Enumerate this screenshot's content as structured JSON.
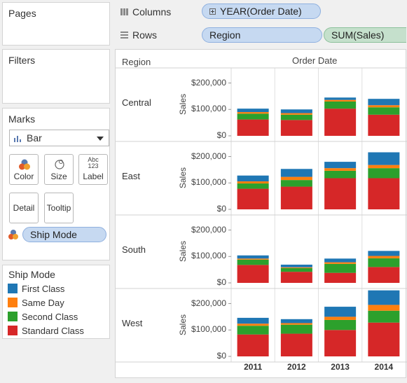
{
  "cards": {
    "pages": "Pages",
    "filters": "Filters",
    "marks": "Marks",
    "legend_title": "Ship Mode"
  },
  "shelves": {
    "columns_label": "Columns",
    "columns_pill": "YEAR(Order Date)",
    "rows_label": "Rows",
    "rows_pills": [
      "Region",
      "SUM(Sales)"
    ]
  },
  "marks": {
    "type": "Bar",
    "buttons": [
      "Color",
      "Size",
      "Label",
      "Detail",
      "Tooltip"
    ],
    "label_icon_text": "Abc\n123",
    "color_field": "Ship Mode"
  },
  "legend": [
    {
      "name": "First Class",
      "color": "#1f77b4"
    },
    {
      "name": "Same Day",
      "color": "#ff7f0e"
    },
    {
      "name": "Second Class",
      "color": "#2ca02c"
    },
    {
      "name": "Standard Class",
      "color": "#d62728"
    }
  ],
  "headers": {
    "region": "Region",
    "order_date": "Order Date",
    "measure": "Sales"
  },
  "chart_data": {
    "type": "bar",
    "stacked": true,
    "categories": [
      "2011",
      "2012",
      "2013",
      "2014"
    ],
    "ylabel": "Sales",
    "yticks": [
      "$0",
      "$100,000",
      "$200,000"
    ],
    "ylim": [
      0,
      220000
    ],
    "facets": [
      {
        "region": "Central",
        "series": [
          {
            "name": "Standard Class",
            "values": [
              62000,
              60000,
              103000,
              80000
            ]
          },
          {
            "name": "Second Class",
            "values": [
              22000,
              20000,
              27000,
              28000
            ]
          },
          {
            "name": "Same Day",
            "values": [
              6000,
              6000,
              6000,
              8000
            ]
          },
          {
            "name": "First Class",
            "values": [
              13000,
              14000,
              9000,
              24000
            ]
          }
        ]
      },
      {
        "region": "East",
        "series": [
          {
            "name": "Standard Class",
            "values": [
              78000,
              86000,
              118000,
              118000
            ]
          },
          {
            "name": "Second Class",
            "values": [
              20000,
              25000,
              28000,
              38000
            ]
          },
          {
            "name": "Same Day",
            "values": [
              8000,
              12000,
              10000,
              12000
            ]
          },
          {
            "name": "First Class",
            "values": [
              22000,
              30000,
              24000,
              48000
            ]
          }
        ]
      },
      {
        "region": "South",
        "series": [
          {
            "name": "Standard Class",
            "values": [
              68000,
              42000,
              38000,
              60000
            ]
          },
          {
            "name": "Second Class",
            "values": [
              20000,
              14000,
              34000,
              33000
            ]
          },
          {
            "name": "Same Day",
            "values": [
              4000,
              3000,
              6000,
              9000
            ]
          },
          {
            "name": "First Class",
            "values": [
              12000,
              10000,
              14000,
              19000
            ]
          }
        ]
      },
      {
        "region": "West",
        "series": [
          {
            "name": "Standard Class",
            "values": [
              83000,
              86000,
              100000,
              128000
            ]
          },
          {
            "name": "Second Class",
            "values": [
              33000,
              34000,
              38000,
              45000
            ]
          },
          {
            "name": "Same Day",
            "values": [
              8000,
              6000,
              12000,
              22000
            ]
          },
          {
            "name": "First Class",
            "values": [
              22000,
              15000,
              38000,
              55000
            ]
          }
        ]
      }
    ]
  }
}
